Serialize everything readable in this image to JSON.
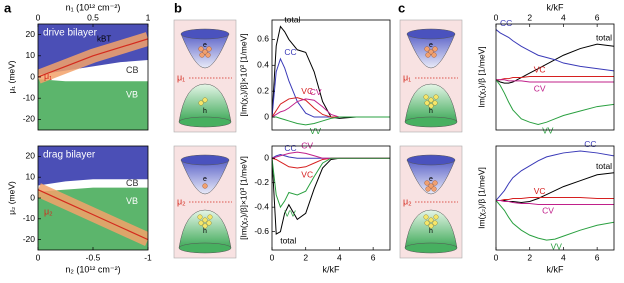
{
  "panel_labels": [
    "a",
    "b",
    "c"
  ],
  "diagrams": [
    {
      "mu": "μ₁",
      "e": "e",
      "h": "h"
    },
    {
      "mu": "μ₂",
      "e": "e",
      "h": "h"
    },
    {
      "mu": "μ₁",
      "e": "e",
      "h": "h"
    },
    {
      "mu": "μ₂",
      "e": "e",
      "h": "h"
    }
  ],
  "chart_data": [
    {
      "type": "band",
      "title": "drive bilayer",
      "x_label": "n₁ (10¹² cm⁻²)",
      "y_label": "μ₁ (meV)",
      "x_axis": "top",
      "x": [
        0,
        0.25,
        0.5,
        0.75,
        1
      ],
      "xlim": [
        0,
        1
      ],
      "xticks": [
        0,
        0.5,
        1
      ],
      "ylim": [
        -25,
        25
      ],
      "yticks": [
        -20,
        -10,
        0,
        10,
        20
      ],
      "cb_edge": [
        1,
        3,
        5,
        7,
        8
      ],
      "vb_edge": [
        -1,
        -2,
        -2,
        -2,
        -2
      ],
      "mu": [
        0,
        5,
        10,
        14,
        18
      ],
      "mu_label": "μ₁",
      "cb_label": "CB",
      "vb_label": "VB",
      "annotation": "kBT",
      "colors": {
        "cb": "#4b4fb6",
        "vb": "#5cb56c",
        "mu": "#d42a1e",
        "band": "#f3a26a"
      }
    },
    {
      "type": "band",
      "title": "drag bilayer",
      "x_label": "n₂ (10¹² cm⁻²)",
      "y_label": "μ₂ (meV)",
      "x_axis": "bottom",
      "x": [
        0,
        -0.25,
        -0.5,
        -0.75,
        -1
      ],
      "xlim": [
        0,
        -1
      ],
      "xticks": [
        0,
        -0.5,
        -1
      ],
      "ylim": [
        -25,
        25
      ],
      "yticks": [
        -20,
        -10,
        0,
        10,
        20
      ],
      "cb_edge": [
        6,
        8,
        9,
        9,
        9
      ],
      "vb_edge": [
        3,
        4,
        5,
        5,
        5
      ],
      "mu": [
        4,
        -2,
        -8,
        -14,
        -20
      ],
      "mu_label": "μ₂",
      "cb_label": "CB",
      "vb_label": "VB",
      "colors": {
        "cb": "#4b4fb6",
        "vb": "#5cb56c",
        "mu": "#d42a1e",
        "band": "#f3a26a"
      }
    },
    {
      "type": "line",
      "y_label": "[Im(χ₁)/β]×10³ [1/meV]",
      "x_axis": "bottom",
      "x": [
        0,
        0.25,
        0.5,
        0.75,
        1,
        1.5,
        2,
        2.5,
        3,
        3.5,
        4,
        5,
        6,
        7
      ],
      "xlim": [
        0,
        7
      ],
      "ylim": [
        -0.1,
        0.75
      ],
      "yticks": [
        0,
        0.2,
        0.4,
        0.6
      ],
      "series": [
        {
          "name": "total",
          "color": "#000000",
          "values": [
            0,
            0.55,
            0.7,
            0.66,
            0.6,
            0.52,
            0.5,
            0.35,
            0.12,
            0,
            -0.01,
            0,
            0,
            0
          ]
        },
        {
          "name": "CC",
          "color": "#3a3ab8",
          "values": [
            0,
            0.35,
            0.45,
            0.38,
            0.28,
            0.12,
            0.03,
            0,
            0,
            0,
            0,
            0,
            0,
            0
          ]
        },
        {
          "name": "VC",
          "color": "#d62020",
          "values": [
            0,
            0.05,
            0.1,
            0.12,
            0.14,
            0.15,
            0.13,
            0.07,
            0.02,
            0,
            0,
            0,
            0,
            0
          ]
        },
        {
          "name": "CV",
          "color": "#c0208a",
          "values": [
            0,
            0.02,
            0.04,
            0.05,
            0.07,
            0.12,
            0.14,
            0.13,
            0.08,
            0.02,
            0,
            0,
            0,
            0
          ]
        },
        {
          "name": "VV",
          "color": "#2aa040",
          "values": [
            0,
            0,
            -0.01,
            -0.02,
            -0.03,
            -0.05,
            -0.06,
            -0.05,
            -0.03,
            -0.01,
            0,
            0,
            0,
            0
          ]
        }
      ]
    },
    {
      "type": "line",
      "y_label": "[Im(χ₂)/β]×10³ [1/meV]",
      "x_label": "k/kF",
      "x_axis": "bottom",
      "x": [
        0,
        0.25,
        0.5,
        0.75,
        1,
        1.5,
        2,
        2.5,
        3,
        3.5,
        4,
        5,
        6,
        7
      ],
      "xlim": [
        0,
        7
      ],
      "xticks": [
        0,
        2,
        4,
        6
      ],
      "ylim": [
        -0.75,
        0.1
      ],
      "yticks": [
        -0.6,
        -0.4,
        -0.2,
        0
      ],
      "series": [
        {
          "name": "total",
          "color": "#000000",
          "values": [
            0,
            -0.62,
            -0.6,
            -0.45,
            -0.38,
            -0.5,
            -0.45,
            -0.25,
            -0.08,
            -0.01,
            0,
            0,
            0,
            0
          ]
        },
        {
          "name": "CC",
          "color": "#3a3ab8",
          "values": [
            0,
            0.02,
            0.03,
            0.02,
            0.01,
            0,
            0,
            0,
            0,
            0,
            0,
            0,
            0,
            0
          ]
        },
        {
          "name": "VC",
          "color": "#d62020",
          "values": [
            0,
            -0.01,
            -0.03,
            -0.05,
            -0.07,
            -0.08,
            -0.07,
            -0.04,
            -0.01,
            0,
            0,
            0,
            0,
            0
          ]
        },
        {
          "name": "CV",
          "color": "#c0208a",
          "values": [
            0,
            0.01,
            0.02,
            0.03,
            0.04,
            0.05,
            0.04,
            0.02,
            0,
            0,
            0,
            0,
            0,
            0
          ]
        },
        {
          "name": "VV",
          "color": "#2aa040",
          "values": [
            0,
            -0.3,
            -0.4,
            -0.35,
            -0.28,
            -0.3,
            -0.27,
            -0.15,
            -0.04,
            0,
            0,
            0,
            0,
            0
          ]
        }
      ]
    },
    {
      "type": "line",
      "y_label": "Im(χ₁)/β [1/meV]",
      "x_label": "k/kF",
      "x_axis": "top",
      "x": [
        0,
        0.25,
        0.5,
        0.75,
        1,
        1.5,
        2,
        2.5,
        3,
        3.5,
        4,
        5,
        6,
        7
      ],
      "xlim": [
        0,
        7
      ],
      "xticks": [
        0,
        2,
        4,
        6
      ],
      "ylim": [
        -0.45,
        0.5
      ],
      "series": [
        {
          "name": "total",
          "color": "#000000",
          "values": [
            0,
            -0.02,
            -0.03,
            -0.03,
            -0.02,
            0.02,
            0.06,
            0.1,
            0.14,
            0.18,
            0.22,
            0.28,
            0.32,
            0.3
          ]
        },
        {
          "name": "CC",
          "color": "#3a3ab8",
          "values": [
            0.45,
            0.42,
            0.4,
            0.38,
            0.35,
            0.3,
            0.26,
            0.22,
            0.2,
            0.18,
            0.15,
            0.12,
            0.1,
            0.08
          ]
        },
        {
          "name": "VC",
          "color": "#d62020",
          "values": [
            0,
            0,
            0.01,
            0.01,
            0.02,
            0.02,
            0.03,
            0.03,
            0.03,
            0.03,
            0.03,
            0.03,
            0.03,
            0.03
          ]
        },
        {
          "name": "CV",
          "color": "#c0208a",
          "values": [
            0,
            0,
            0,
            -0.01,
            -0.01,
            -0.01,
            -0.02,
            -0.02,
            -0.02,
            -0.02,
            -0.02,
            -0.02,
            -0.02,
            -0.02
          ]
        },
        {
          "name": "VV",
          "color": "#2aa040",
          "values": [
            0,
            -0.05,
            -0.12,
            -0.2,
            -0.27,
            -0.35,
            -0.38,
            -0.4,
            -0.38,
            -0.35,
            -0.32,
            -0.28,
            -0.24,
            -0.22
          ]
        }
      ]
    },
    {
      "type": "line",
      "y_label": "Im(χ₂)/β [1/meV]",
      "x_label": "k/kF",
      "x_axis": "bottom",
      "x": [
        0,
        0.25,
        0.5,
        0.75,
        1,
        1.5,
        2,
        2.5,
        3,
        3.5,
        4,
        5,
        6,
        7
      ],
      "xlim": [
        0,
        7
      ],
      "xticks": [
        0,
        2,
        4,
        6
      ],
      "ylim": [
        -0.5,
        0.55
      ],
      "series": [
        {
          "name": "total",
          "color": "#000000",
          "values": [
            0,
            0,
            0,
            -0.01,
            -0.01,
            -0.02,
            -0.01,
            0.02,
            0.06,
            0.1,
            0.14,
            0.2,
            0.26,
            0.28
          ]
        },
        {
          "name": "CC",
          "color": "#3a3ab8",
          "values": [
            0,
            0.05,
            0.1,
            0.17,
            0.23,
            0.3,
            0.35,
            0.4,
            0.44,
            0.46,
            0.48,
            0.5,
            0.48,
            0.45
          ]
        },
        {
          "name": "VC",
          "color": "#d62020",
          "values": [
            0,
            0,
            0.01,
            0.01,
            0.02,
            0.02,
            0.03,
            0.03,
            0.03,
            0.03,
            0.03,
            0.03,
            0.02,
            0.02
          ]
        },
        {
          "name": "CV",
          "color": "#c0208a",
          "values": [
            0,
            0,
            -0.01,
            -0.01,
            -0.02,
            -0.03,
            -0.03,
            -0.04,
            -0.04,
            -0.04,
            -0.04,
            -0.04,
            -0.04,
            -0.04
          ]
        },
        {
          "name": "VV",
          "color": "#2aa040",
          "values": [
            0,
            -0.05,
            -0.1,
            -0.17,
            -0.23,
            -0.3,
            -0.35,
            -0.38,
            -0.4,
            -0.39,
            -0.36,
            -0.3,
            -0.25,
            -0.22
          ]
        }
      ]
    }
  ]
}
